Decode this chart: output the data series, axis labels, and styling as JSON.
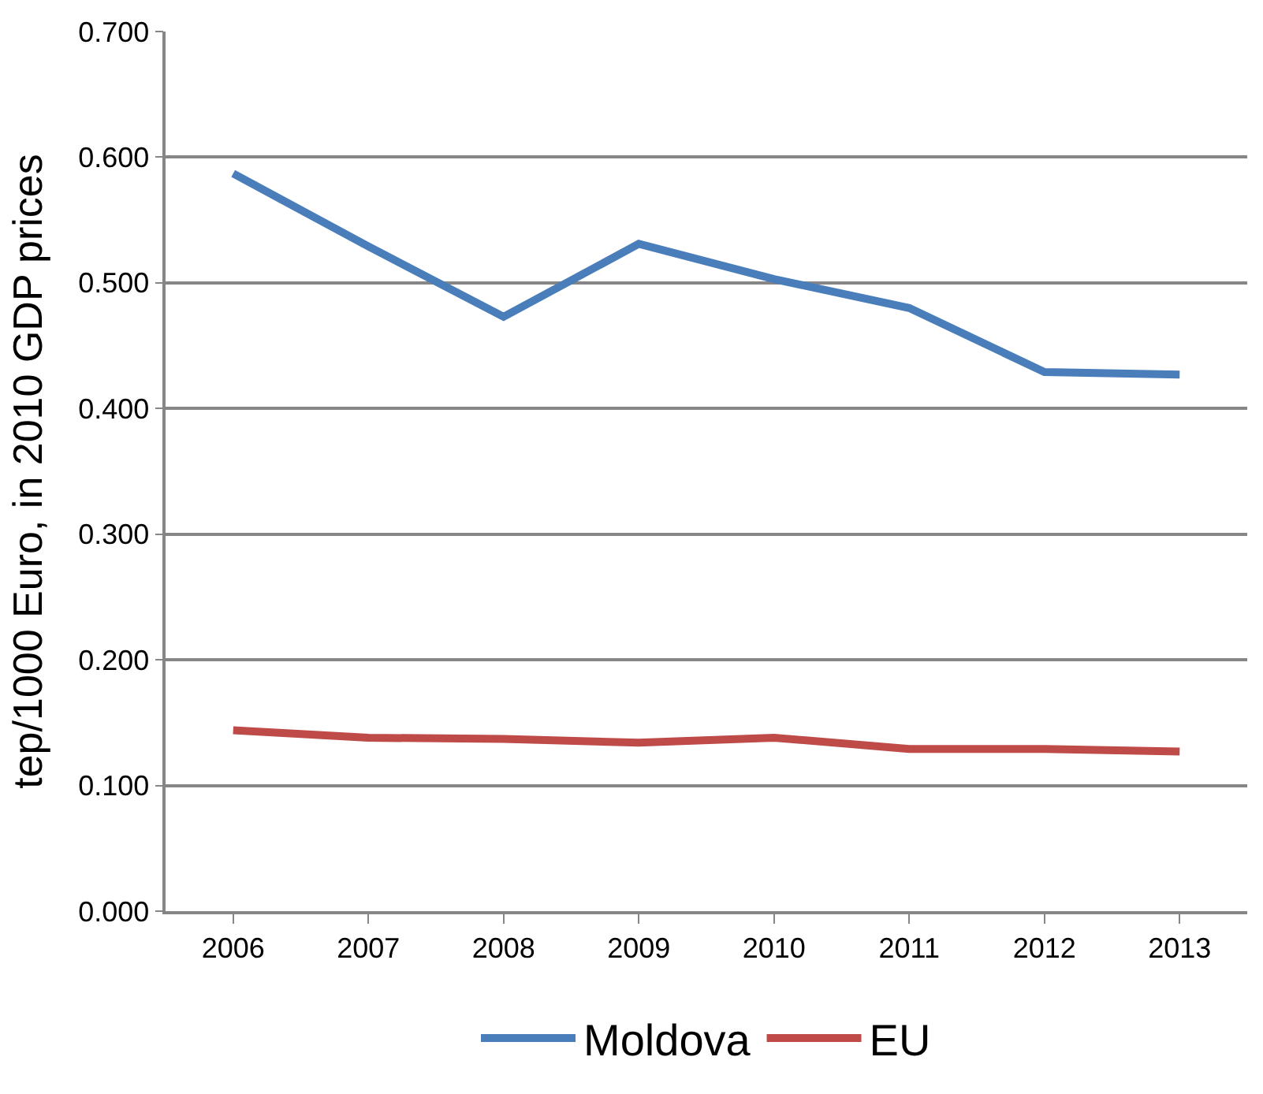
{
  "chart_data": {
    "type": "line",
    "ylabel": "tep/1000 Euro, in 2010 GDP prices",
    "categories": [
      "2006",
      "2007",
      "2008",
      "2009",
      "2010",
      "2011",
      "2012",
      "2013"
    ],
    "series": [
      {
        "name": "Moldova",
        "color": "#4a7ebb",
        "values": [
          0.587,
          0.529,
          0.473,
          0.531,
          0.503,
          0.48,
          0.429,
          0.427
        ]
      },
      {
        "name": "EU",
        "color": "#be4b48",
        "values": [
          0.144,
          0.138,
          0.137,
          0.134,
          0.138,
          0.129,
          0.129,
          0.127
        ]
      }
    ],
    "ylim": [
      0,
      0.7
    ],
    "yticks": [
      {
        "value": 0,
        "label": "0.000"
      },
      {
        "value": 0.1,
        "label": "0.100"
      },
      {
        "value": 0.2,
        "label": "0.200"
      },
      {
        "value": 0.3,
        "label": "0.300"
      },
      {
        "value": 0.4,
        "label": "0.400"
      },
      {
        "value": 0.5,
        "label": "0.500"
      },
      {
        "value": 0.6,
        "label": "0.600"
      },
      {
        "value": 0.7,
        "label": "0.700"
      }
    ],
    "grid": "y",
    "legend": "bottom",
    "marker": "none",
    "line_style": "solid"
  }
}
